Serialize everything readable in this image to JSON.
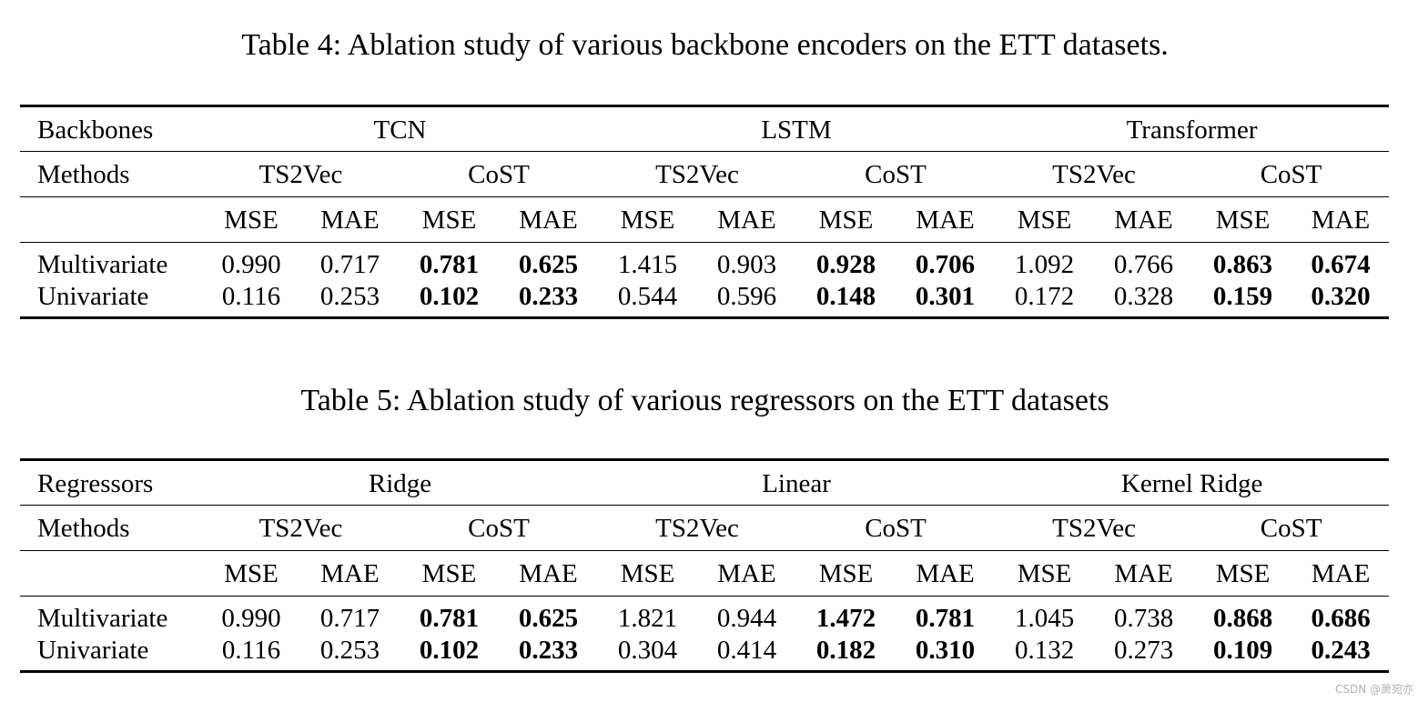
{
  "table4": {
    "caption": "Table 4: Ablation study of various backbone encoders on the ETT datasets.",
    "group_header_label": "Backbones",
    "groups": [
      "TCN",
      "LSTM",
      "Transformer"
    ],
    "methods_label": "Methods",
    "methods": [
      "TS2Vec",
      "CoST",
      "TS2Vec",
      "CoST",
      "TS2Vec",
      "CoST"
    ],
    "metric_label": "",
    "metrics": [
      "MSE",
      "MAE",
      "MSE",
      "MAE",
      "MSE",
      "MAE",
      "MSE",
      "MAE",
      "MSE",
      "MAE",
      "MSE",
      "MAE"
    ],
    "rows": [
      {
        "label": "Multivariate",
        "values": [
          "0.990",
          "0.717",
          "0.781",
          "0.625",
          "1.415",
          "0.903",
          "0.928",
          "0.706",
          "1.092",
          "0.766",
          "0.863",
          "0.674"
        ]
      },
      {
        "label": "Univariate",
        "values": [
          "0.116",
          "0.253",
          "0.102",
          "0.233",
          "0.544",
          "0.596",
          "0.148",
          "0.301",
          "0.172",
          "0.328",
          "0.159",
          "0.320"
        ]
      }
    ],
    "bold_columns": [
      2,
      3,
      6,
      7,
      10,
      11
    ]
  },
  "table5": {
    "caption": "Table 5: Ablation study of various regressors on the ETT datasets",
    "group_header_label": "Regressors",
    "groups": [
      "Ridge",
      "Linear",
      "Kernel Ridge"
    ],
    "methods_label": "Methods",
    "methods": [
      "TS2Vec",
      "CoST",
      "TS2Vec",
      "CoST",
      "TS2Vec",
      "CoST"
    ],
    "metric_label": "",
    "metrics": [
      "MSE",
      "MAE",
      "MSE",
      "MAE",
      "MSE",
      "MAE",
      "MSE",
      "MAE",
      "MSE",
      "MAE",
      "MSE",
      "MAE"
    ],
    "rows": [
      {
        "label": "Multivariate",
        "values": [
          "0.990",
          "0.717",
          "0.781",
          "0.625",
          "1.821",
          "0.944",
          "1.472",
          "0.781",
          "1.045",
          "0.738",
          "0.868",
          "0.686"
        ]
      },
      {
        "label": "Univariate",
        "values": [
          "0.116",
          "0.253",
          "0.102",
          "0.233",
          "0.304",
          "0.414",
          "0.182",
          "0.310",
          "0.132",
          "0.273",
          "0.109",
          "0.243"
        ]
      }
    ],
    "bold_columns": [
      2,
      3,
      6,
      7,
      10,
      11
    ]
  },
  "watermark": "CSDN @萧宛亦"
}
